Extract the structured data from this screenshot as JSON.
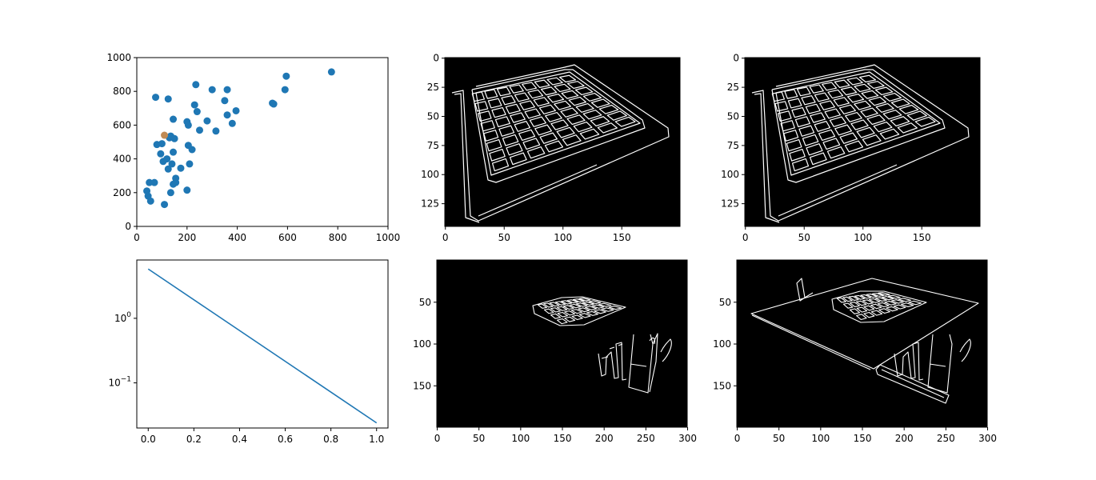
{
  "colors": {
    "scatter_main": "#1f77b4",
    "scatter_highlight": "#c08a54",
    "line": "#1f77b4",
    "image_background": "#000000",
    "edge_stroke": "#ffffff",
    "axes": "#000000"
  },
  "chart_data": [
    {
      "id": "scatter",
      "type": "scatter",
      "xlim": [
        0,
        1000
      ],
      "ylim": [
        0,
        1000
      ],
      "xticks": [
        0,
        200,
        400,
        600,
        800,
        1000
      ],
      "yticks": [
        0,
        200,
        400,
        600,
        800,
        1000
      ],
      "xtick_labels": [
        "0",
        "200",
        "400",
        "600",
        "800",
        "1000"
      ],
      "ytick_labels": [
        "0",
        "200",
        "400",
        "600",
        "800",
        "1000"
      ],
      "grid": false,
      "series": [
        {
          "color": "#1f77b4",
          "points": [
            [
              40,
              210
            ],
            [
              45,
              180
            ],
            [
              50,
              260
            ],
            [
              55,
              150
            ],
            [
              70,
              260
            ],
            [
              75,
              765
            ],
            [
              80,
              485
            ],
            [
              95,
              430
            ],
            [
              100,
              490
            ],
            [
              105,
              385
            ],
            [
              110,
              130
            ],
            [
              120,
              400
            ],
            [
              125,
              755
            ],
            [
              125,
              340
            ],
            [
              130,
              525
            ],
            [
              135,
              200
            ],
            [
              135,
              535
            ],
            [
              140,
              370
            ],
            [
              145,
              635
            ],
            [
              145,
              440
            ],
            [
              145,
              250
            ],
            [
              150,
              520
            ],
            [
              155,
              260
            ],
            [
              155,
              285
            ],
            [
              175,
              345
            ],
            [
              200,
              620
            ],
            [
              200,
              215
            ],
            [
              205,
              480
            ],
            [
              205,
              600
            ],
            [
              210,
              370
            ],
            [
              220,
              455
            ],
            [
              230,
              720
            ],
            [
              235,
              840
            ],
            [
              240,
              680
            ],
            [
              250,
              570
            ],
            [
              280,
              625
            ],
            [
              300,
              810
            ],
            [
              315,
              565
            ],
            [
              350,
              745
            ],
            [
              360,
              810
            ],
            [
              360,
              660
            ],
            [
              380,
              610
            ],
            [
              395,
              685
            ],
            [
              540,
              730
            ],
            [
              545,
              725
            ],
            [
              590,
              810
            ],
            [
              595,
              890
            ],
            [
              775,
              915
            ]
          ]
        },
        {
          "color": "#c08a54",
          "points": [
            [
              110,
              540
            ]
          ]
        }
      ]
    },
    {
      "id": "line-log",
      "type": "line",
      "yscale": "log",
      "xlim": [
        -0.05,
        1.05
      ],
      "ylim": [
        0.02,
        8
      ],
      "xticks": [
        0,
        0.2,
        0.4,
        0.6,
        0.8,
        1.0
      ],
      "xtick_labels": [
        "0.0",
        "0.2",
        "0.4",
        "0.6",
        "0.8",
        "1.0"
      ],
      "yticks": [
        1,
        0.1
      ],
      "ytick_labels": [
        {
          "base": "10",
          "exp": "0"
        },
        {
          "base": "10",
          "exp": "−1"
        }
      ],
      "grid": false,
      "series": [
        {
          "color": "#1f77b4",
          "x": [
            0,
            1
          ],
          "y": [
            5.8,
            0.024
          ]
        }
      ]
    },
    {
      "id": "edges-1",
      "type": "image",
      "description_type": "edge-detection image (chessboard)",
      "xlim": [
        -0.5,
        199.5
      ],
      "ylim": [
        144.5,
        -0.5
      ],
      "xticks": [
        0,
        50,
        100,
        150
      ],
      "yticks": [
        0,
        25,
        50,
        75,
        100,
        125
      ],
      "xtick_labels": [
        "0",
        "50",
        "100",
        "150"
      ],
      "ytick_labels": [
        "0",
        "25",
        "50",
        "75",
        "100",
        "125"
      ]
    },
    {
      "id": "edges-2",
      "type": "image",
      "description_type": "edge-detection image (chessboard)",
      "xlim": [
        -0.5,
        199.5
      ],
      "ylim": [
        144.5,
        -0.5
      ],
      "xticks": [
        0,
        50,
        100,
        150
      ],
      "yticks": [
        0,
        25,
        50,
        75,
        100,
        125
      ],
      "xtick_labels": [
        "0",
        "50",
        "100",
        "150"
      ],
      "ytick_labels": [
        "0",
        "25",
        "50",
        "75",
        "100",
        "125"
      ]
    },
    {
      "id": "edges-3",
      "type": "image",
      "description_type": "edge-detection image (small chessboard with objects)",
      "xlim": [
        -0.5,
        299.5
      ],
      "ylim": [
        199.5,
        -0.5
      ],
      "xticks": [
        0,
        50,
        100,
        150,
        200,
        250,
        300
      ],
      "yticks": [
        50,
        100,
        150
      ],
      "xtick_labels": [
        "0",
        "50",
        "100",
        "150",
        "200",
        "250",
        "300"
      ],
      "ytick_labels": [
        "50",
        "100",
        "150"
      ]
    },
    {
      "id": "edges-4",
      "type": "image",
      "description_type": "edge-detection image (board with objects)",
      "xlim": [
        -0.5,
        299.5
      ],
      "ylim": [
        199.5,
        -0.5
      ],
      "xticks": [
        0,
        50,
        100,
        150,
        200,
        250,
        300
      ],
      "yticks": [
        50,
        100,
        150
      ],
      "xtick_labels": [
        "0",
        "50",
        "100",
        "150",
        "200",
        "250",
        "300"
      ],
      "ytick_labels": [
        "50",
        "100",
        "150"
      ]
    }
  ]
}
